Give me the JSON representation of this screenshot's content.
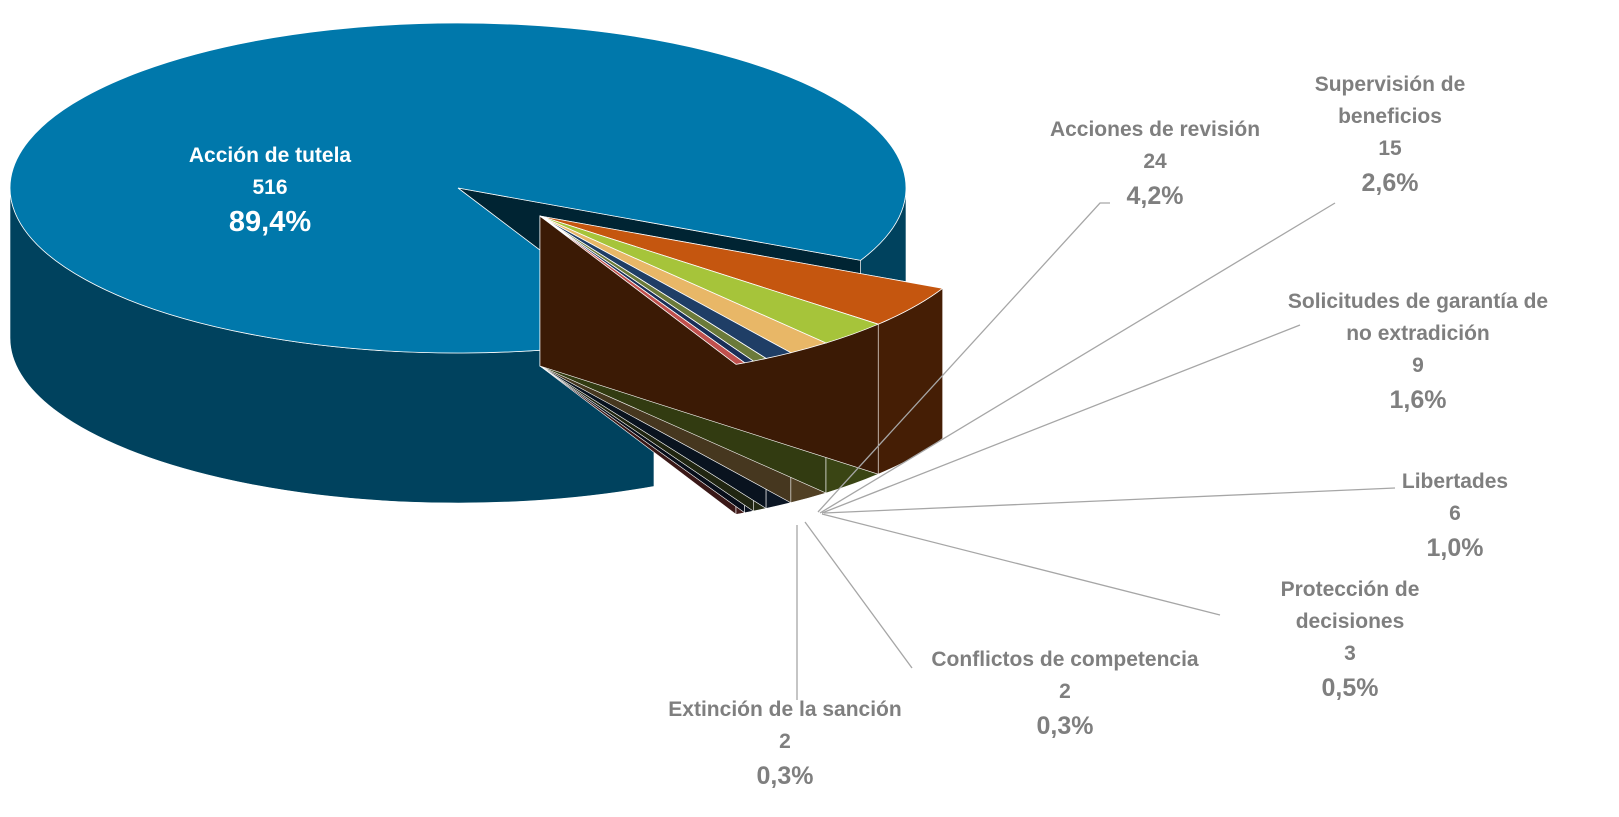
{
  "chart_data": {
    "type": "pie3d",
    "categories": [
      "Acción de tutela",
      "Acciones de revisión",
      "Supervisión de beneficios",
      "Solicitudes de garantía de no extradición",
      "Libertades",
      "Protección de decisiones",
      "Conflictos de competencia",
      "Extinción de la sanción"
    ],
    "values": [
      516,
      24,
      15,
      9,
      6,
      3,
      2,
      2
    ],
    "percent_labels": [
      "89,4%",
      "4,2%",
      "2,6%",
      "1,6%",
      "1,0%",
      "0,5%",
      "0,3%",
      "0,3%"
    ],
    "colors": [
      "#0078ab",
      "#c5560f",
      "#a6c43a",
      "#e8b767",
      "#1f3e66",
      "#6b7a3a",
      "#1a2f58",
      "#c0504d"
    ]
  }
}
